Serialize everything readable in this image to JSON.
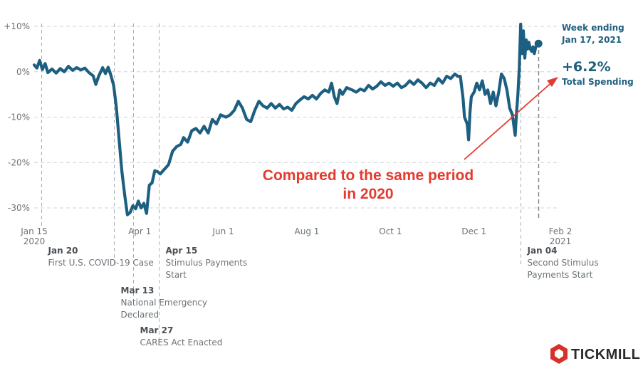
{
  "chart_data": {
    "type": "line",
    "x_start": "2020-01-15",
    "x_end": "2021-02-02",
    "ylim": [
      -31,
      11
    ],
    "y_ticks": [
      {
        "value": 10,
        "label": "+10%"
      },
      {
        "value": 0,
        "label": "0%"
      },
      {
        "value": -10,
        "label": "-10%"
      },
      {
        "value": -20,
        "label": "-20%"
      },
      {
        "value": -30,
        "label": "-30%"
      }
    ],
    "x_ticks": [
      {
        "date": "2020-01-15",
        "label": "Jan 15",
        "sub": "2020"
      },
      {
        "date": "2020-04-01",
        "label": "Apr 1",
        "sub": ""
      },
      {
        "date": "2020-06-01",
        "label": "Jun 1",
        "sub": ""
      },
      {
        "date": "2020-08-01",
        "label": "Aug 1",
        "sub": ""
      },
      {
        "date": "2020-10-01",
        "label": "Oct 1",
        "sub": ""
      },
      {
        "date": "2020-12-01",
        "label": "Dec 1",
        "sub": ""
      },
      {
        "date": "2021-02-02",
        "label": "Feb 2",
        "sub": "2021"
      }
    ],
    "grid": true,
    "series": [
      {
        "color": "#1d5f80",
        "points": [
          [
            "2020-01-15",
            1.5
          ],
          [
            "2020-01-17",
            0.8
          ],
          [
            "2020-01-19",
            2.5
          ],
          [
            "2020-01-21",
            0.5
          ],
          [
            "2020-01-23",
            1.8
          ],
          [
            "2020-01-25",
            -0.2
          ],
          [
            "2020-01-28",
            0.6
          ],
          [
            "2020-01-31",
            -0.3
          ],
          [
            "2020-02-03",
            0.7
          ],
          [
            "2020-02-06",
            0.0
          ],
          [
            "2020-02-09",
            1.2
          ],
          [
            "2020-02-12",
            0.3
          ],
          [
            "2020-02-15",
            0.9
          ],
          [
            "2020-02-18",
            0.4
          ],
          [
            "2020-02-21",
            0.8
          ],
          [
            "2020-02-24",
            -0.2
          ],
          [
            "2020-02-27",
            -0.9
          ],
          [
            "2020-02-29",
            -2.8
          ],
          [
            "2020-03-02",
            -1.0
          ],
          [
            "2020-03-05",
            0.9
          ],
          [
            "2020-03-07",
            -0.4
          ],
          [
            "2020-03-09",
            1.0
          ],
          [
            "2020-03-11",
            -0.8
          ],
          [
            "2020-03-13",
            -3.0
          ],
          [
            "2020-03-15",
            -8.0
          ],
          [
            "2020-03-17",
            -15.0
          ],
          [
            "2020-03-19",
            -22.0
          ],
          [
            "2020-03-21",
            -27.0
          ],
          [
            "2020-03-23",
            -31.5
          ],
          [
            "2020-03-25",
            -31.0
          ],
          [
            "2020-03-27",
            -29.5
          ],
          [
            "2020-03-29",
            -30.2
          ],
          [
            "2020-03-31",
            -28.5
          ],
          [
            "2020-04-02",
            -30.0
          ],
          [
            "2020-04-04",
            -29.0
          ],
          [
            "2020-04-06",
            -31.2
          ],
          [
            "2020-04-08",
            -25.0
          ],
          [
            "2020-04-10",
            -24.5
          ],
          [
            "2020-04-12",
            -21.8
          ],
          [
            "2020-04-14",
            -22.0
          ],
          [
            "2020-04-16",
            -22.5
          ],
          [
            "2020-04-19",
            -21.5
          ],
          [
            "2020-04-22",
            -20.5
          ],
          [
            "2020-04-25",
            -17.5
          ],
          [
            "2020-04-28",
            -16.5
          ],
          [
            "2020-05-01",
            -16.0
          ],
          [
            "2020-05-03",
            -14.5
          ],
          [
            "2020-05-06",
            -15.5
          ],
          [
            "2020-05-09",
            -13.0
          ],
          [
            "2020-05-12",
            -12.5
          ],
          [
            "2020-05-15",
            -13.5
          ],
          [
            "2020-05-18",
            -12.0
          ],
          [
            "2020-05-21",
            -13.5
          ],
          [
            "2020-05-24",
            -10.5
          ],
          [
            "2020-05-27",
            -11.5
          ],
          [
            "2020-05-30",
            -9.5
          ],
          [
            "2020-06-03",
            -10.0
          ],
          [
            "2020-06-06",
            -9.5
          ],
          [
            "2020-06-09",
            -8.5
          ],
          [
            "2020-06-12",
            -6.5
          ],
          [
            "2020-06-15",
            -8.0
          ],
          [
            "2020-06-18",
            -10.5
          ],
          [
            "2020-06-21",
            -11.0
          ],
          [
            "2020-06-24",
            -8.5
          ],
          [
            "2020-06-27",
            -6.5
          ],
          [
            "2020-06-30",
            -7.5
          ],
          [
            "2020-07-03",
            -8.0
          ],
          [
            "2020-07-06",
            -7.0
          ],
          [
            "2020-07-09",
            -8.0
          ],
          [
            "2020-07-12",
            -7.2
          ],
          [
            "2020-07-15",
            -8.2
          ],
          [
            "2020-07-18",
            -7.8
          ],
          [
            "2020-07-21",
            -8.5
          ],
          [
            "2020-07-24",
            -7.0
          ],
          [
            "2020-07-27",
            -6.2
          ],
          [
            "2020-07-30",
            -5.5
          ],
          [
            "2020-08-02",
            -6.0
          ],
          [
            "2020-08-05",
            -5.2
          ],
          [
            "2020-08-08",
            -6.0
          ],
          [
            "2020-08-11",
            -4.8
          ],
          [
            "2020-08-14",
            -4.0
          ],
          [
            "2020-08-17",
            -4.5
          ],
          [
            "2020-08-19",
            -2.5
          ],
          [
            "2020-08-21",
            -5.5
          ],
          [
            "2020-08-23",
            -7.0
          ],
          [
            "2020-08-25",
            -4.0
          ],
          [
            "2020-08-27",
            -5.0
          ],
          [
            "2020-08-30",
            -3.5
          ],
          [
            "2020-09-03",
            -4.0
          ],
          [
            "2020-09-06",
            -4.5
          ],
          [
            "2020-09-09",
            -3.8
          ],
          [
            "2020-09-12",
            -4.2
          ],
          [
            "2020-09-15",
            -3.0
          ],
          [
            "2020-09-18",
            -3.8
          ],
          [
            "2020-09-21",
            -3.2
          ],
          [
            "2020-09-24",
            -2.2
          ],
          [
            "2020-09-27",
            -3.0
          ],
          [
            "2020-09-30",
            -2.5
          ],
          [
            "2020-10-03",
            -3.2
          ],
          [
            "2020-10-06",
            -2.5
          ],
          [
            "2020-10-09",
            -3.5
          ],
          [
            "2020-10-12",
            -3.0
          ],
          [
            "2020-10-15",
            -2.0
          ],
          [
            "2020-10-18",
            -2.8
          ],
          [
            "2020-10-21",
            -1.8
          ],
          [
            "2020-10-24",
            -2.5
          ],
          [
            "2020-10-27",
            -3.5
          ],
          [
            "2020-10-30",
            -2.5
          ],
          [
            "2020-11-02",
            -3.0
          ],
          [
            "2020-11-05",
            -1.5
          ],
          [
            "2020-11-08",
            -2.5
          ],
          [
            "2020-11-11",
            -1.0
          ],
          [
            "2020-11-14",
            -1.5
          ],
          [
            "2020-11-17",
            -0.5
          ],
          [
            "2020-11-19",
            -1.0
          ],
          [
            "2020-11-21",
            -1.0
          ],
          [
            "2020-11-23",
            -6.0
          ],
          [
            "2020-11-24",
            -10.0
          ],
          [
            "2020-11-26",
            -11.5
          ],
          [
            "2020-11-27",
            -15.0
          ],
          [
            "2020-11-28",
            -9.0
          ],
          [
            "2020-11-29",
            -5.5
          ],
          [
            "2020-12-01",
            -4.5
          ],
          [
            "2020-12-03",
            -2.5
          ],
          [
            "2020-12-05",
            -4.0
          ],
          [
            "2020-12-07",
            -2.0
          ],
          [
            "2020-12-09",
            -5.0
          ],
          [
            "2020-12-11",
            -4.0
          ],
          [
            "2020-12-13",
            -7.0
          ],
          [
            "2020-12-15",
            -4.5
          ],
          [
            "2020-12-17",
            -7.5
          ],
          [
            "2020-12-19",
            -4.5
          ],
          [
            "2020-12-21",
            -0.5
          ],
          [
            "2020-12-23",
            -1.5
          ],
          [
            "2020-12-25",
            -4.0
          ],
          [
            "2020-12-27",
            -8.0
          ],
          [
            "2020-12-29",
            -9.5
          ],
          [
            "2020-12-31",
            -14.0
          ],
          [
            "2021-01-01",
            -9.0
          ],
          [
            "2021-01-02",
            -5.0
          ],
          [
            "2021-01-03",
            1.0
          ],
          [
            "2021-01-04",
            10.5
          ],
          [
            "2021-01-05",
            4.0
          ],
          [
            "2021-01-06",
            9.0
          ],
          [
            "2021-01-07",
            3.0
          ],
          [
            "2021-01-08",
            7.0
          ],
          [
            "2021-01-09",
            5.0
          ],
          [
            "2021-01-10",
            6.5
          ],
          [
            "2021-01-11",
            5.0
          ],
          [
            "2021-01-12",
            4.5
          ],
          [
            "2021-01-13",
            5.5
          ],
          [
            "2021-01-14",
            4.0
          ],
          [
            "2021-01-15",
            5.5
          ],
          [
            "2021-01-17",
            6.2
          ]
        ]
      }
    ],
    "events": [
      {
        "date": "2020-01-20",
        "label": "Jan 20",
        "text": [
          "First U.S. COVID-19 Case"
        ]
      },
      {
        "date": "2020-03-13",
        "label": "Mar 13",
        "text": [
          "National Emergency",
          "Declared"
        ]
      },
      {
        "date": "2020-03-27",
        "label": "Mar 27",
        "text": [
          "CARES Act Enacted"
        ]
      },
      {
        "date": "2020-04-15",
        "label": "Apr 15",
        "text": [
          "Stimulus Payments",
          "Start"
        ]
      },
      {
        "date": "2021-01-04",
        "label": "Jan 04",
        "text": [
          "Second Stimulus",
          "Payments Start"
        ]
      }
    ],
    "last_point_date": "2021-01-17",
    "callout": {
      "week_line1": "Week ending",
      "week_line2": "Jan 17, 2021",
      "value": "+6.2%",
      "label": "Total Spending"
    },
    "annotation": {
      "line1": "Compared to the same period",
      "line2": "in 2020"
    }
  },
  "brand": {
    "name": "TICKMILL",
    "color": "#d7312a"
  }
}
